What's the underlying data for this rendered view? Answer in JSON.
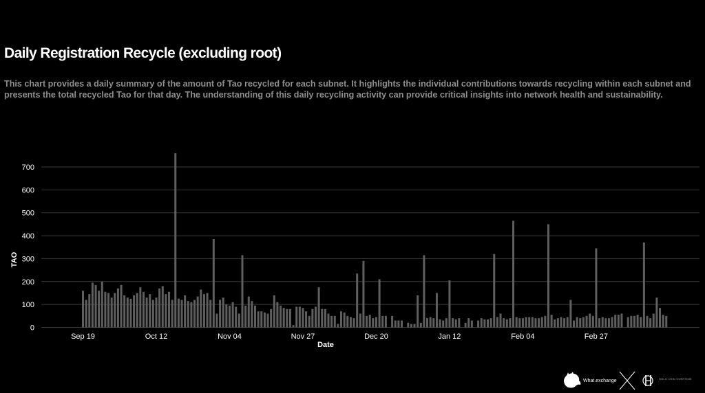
{
  "header": {
    "title": "Daily Registration Recycle (excluding root)",
    "description": "This chart provides a daily summary of the amount of Tao recycled for each subnet. It highlights the individual contributions towards recycling within each subnet and presents the total recycled Tao for that day. The understanding of this daily recycling activity can provide critical insights into network health and sustainability."
  },
  "footer": {
    "brand1": "What.exchange",
    "brand2": "HOLD COIN OVERTIME"
  },
  "colors": {
    "background": "#000000",
    "bar": "#5f5f5f",
    "grid": "#3a3a3a",
    "text": "#ffffff",
    "muted": "#8f8f8f"
  },
  "chart_data": {
    "type": "bar",
    "xlabel": "Date",
    "ylabel": "TAO",
    "ylim": [
      0,
      750
    ],
    "yticks": [
      0,
      100,
      200,
      300,
      400,
      500,
      600,
      700
    ],
    "xtick_labels": [
      "Sep 19",
      "Oct 12",
      "Nov 04",
      "Nov 27",
      "Dec 20",
      "Jan 12",
      "Feb 04",
      "Feb 27"
    ],
    "grid": true,
    "values": [
      160,
      120,
      145,
      195,
      185,
      160,
      200,
      155,
      150,
      130,
      150,
      170,
      185,
      140,
      130,
      125,
      140,
      150,
      175,
      155,
      130,
      145,
      120,
      130,
      170,
      180,
      145,
      155,
      120,
      760,
      125,
      120,
      140,
      115,
      110,
      120,
      135,
      165,
      145,
      150,
      120,
      385,
      60,
      120,
      130,
      100,
      95,
      110,
      90,
      60,
      315,
      95,
      135,
      115,
      95,
      70,
      70,
      65,
      60,
      80,
      140,
      110,
      95,
      85,
      80,
      80,
      10,
      90,
      90,
      85,
      70,
      50,
      80,
      90,
      175,
      80,
      80,
      60,
      50,
      50,
      15,
      70,
      65,
      50,
      45,
      40,
      235,
      60,
      290,
      50,
      55,
      40,
      45,
      210,
      50,
      50,
      0,
      50,
      30,
      30,
      30,
      0,
      20,
      15,
      15,
      140,
      20,
      315,
      40,
      45,
      40,
      150,
      35,
      30,
      40,
      205,
      40,
      35,
      40,
      0,
      20,
      40,
      30,
      0,
      30,
      40,
      35,
      35,
      40,
      320,
      45,
      60,
      40,
      35,
      40,
      465,
      45,
      40,
      40,
      45,
      45,
      45,
      40,
      40,
      45,
      50,
      450,
      55,
      35,
      40,
      45,
      40,
      45,
      120,
      30,
      45,
      40,
      45,
      50,
      60,
      50,
      345,
      40,
      45,
      40,
      40,
      45,
      55,
      55,
      60,
      0,
      45,
      50,
      50,
      55,
      45,
      370,
      50,
      40,
      60,
      130,
      85,
      55,
      50
    ]
  }
}
